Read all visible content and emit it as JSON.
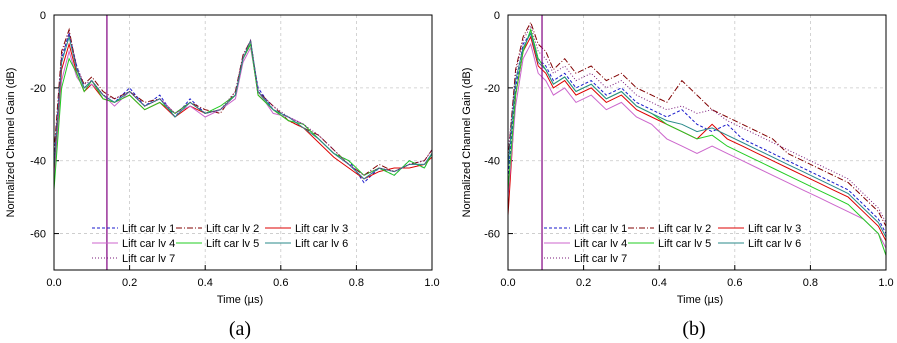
{
  "chart_data": [
    {
      "id": "a",
      "type": "line",
      "caption": "(a)",
      "xlabel": "Time (µs)",
      "ylabel": "Normalized Channel Gain (dB)",
      "xlim": [
        0.0,
        1.0
      ],
      "ylim": [
        -70,
        0
      ],
      "xticks": [
        "0.0",
        "0.2",
        "0.4",
        "0.6",
        "0.8",
        "1.0"
      ],
      "yticks": [
        "0",
        "-20",
        "-40",
        "-60"
      ],
      "grid": true,
      "legend_position": "bottom-left",
      "marker_line_x": 0.14,
      "marker_line_color": "#800080",
      "series": [
        {
          "name": "Lift car lv 1",
          "color": "#1a1acc",
          "dash": "3 2",
          "x": [
            0.0,
            0.02,
            0.04,
            0.06,
            0.08,
            0.1,
            0.13,
            0.16,
            0.2,
            0.24,
            0.28,
            0.32,
            0.36,
            0.4,
            0.44,
            0.48,
            0.5,
            0.52,
            0.54,
            0.58,
            0.62,
            0.66,
            0.7,
            0.74,
            0.78,
            0.82,
            0.86,
            0.9,
            0.94,
            0.98,
            1.0
          ],
          "y": [
            -40,
            -12,
            -5,
            -14,
            -20,
            -18,
            -22,
            -24,
            -20,
            -25,
            -22,
            -28,
            -23,
            -27,
            -26,
            -22,
            -12,
            -8,
            -20,
            -26,
            -28,
            -30,
            -34,
            -38,
            -40,
            -46,
            -42,
            -44,
            -40,
            -42,
            -38
          ]
        },
        {
          "name": "Lift car lv 2",
          "color": "#800000",
          "dash": "6 2 1 2",
          "x": [
            0.0,
            0.02,
            0.04,
            0.06,
            0.08,
            0.1,
            0.13,
            0.16,
            0.2,
            0.24,
            0.28,
            0.32,
            0.36,
            0.4,
            0.44,
            0.48,
            0.5,
            0.52,
            0.54,
            0.58,
            0.62,
            0.66,
            0.7,
            0.74,
            0.78,
            0.82,
            0.86,
            0.9,
            0.94,
            0.98,
            1.0
          ],
          "y": [
            -38,
            -10,
            -4,
            -15,
            -19,
            -17,
            -21,
            -23,
            -21,
            -24,
            -23,
            -27,
            -24,
            -26,
            -27,
            -21,
            -11,
            -7,
            -21,
            -25,
            -29,
            -31,
            -33,
            -37,
            -41,
            -44,
            -41,
            -43,
            -41,
            -40,
            -37
          ]
        },
        {
          "name": "Lift car lv 3",
          "color": "#dd0000",
          "dash": "",
          "x": [
            0.0,
            0.02,
            0.04,
            0.06,
            0.08,
            0.1,
            0.13,
            0.16,
            0.2,
            0.24,
            0.28,
            0.32,
            0.36,
            0.4,
            0.44,
            0.48,
            0.5,
            0.52,
            0.54,
            0.58,
            0.62,
            0.66,
            0.7,
            0.74,
            0.78,
            0.82,
            0.86,
            0.9,
            0.94,
            0.98,
            1.0
          ],
          "y": [
            -44,
            -15,
            -8,
            -16,
            -21,
            -19,
            -23,
            -24,
            -22,
            -26,
            -24,
            -28,
            -25,
            -27,
            -26,
            -22,
            -12,
            -8,
            -22,
            -26,
            -29,
            -31,
            -35,
            -39,
            -42,
            -45,
            -43,
            -42,
            -42,
            -41,
            -39
          ]
        },
        {
          "name": "Lift car lv 4",
          "color": "#cc66cc",
          "dash": "",
          "x": [
            0.0,
            0.02,
            0.04,
            0.06,
            0.08,
            0.1,
            0.13,
            0.16,
            0.2,
            0.24,
            0.28,
            0.32,
            0.36,
            0.4,
            0.44,
            0.48,
            0.5,
            0.52,
            0.54,
            0.58,
            0.62,
            0.66,
            0.7,
            0.74,
            0.78,
            0.82,
            0.86,
            0.9,
            0.94,
            0.98,
            1.0
          ],
          "y": [
            -46,
            -18,
            -10,
            -17,
            -20,
            -19,
            -22,
            -25,
            -21,
            -25,
            -23,
            -27,
            -25,
            -28,
            -26,
            -23,
            -13,
            -9,
            -21,
            -27,
            -28,
            -30,
            -34,
            -38,
            -41,
            -45,
            -42,
            -43,
            -41,
            -41,
            -38
          ]
        },
        {
          "name": "Lift car lv 5",
          "color": "#22cc22",
          "dash": "",
          "x": [
            0.0,
            0.02,
            0.04,
            0.06,
            0.08,
            0.1,
            0.13,
            0.16,
            0.2,
            0.24,
            0.28,
            0.32,
            0.36,
            0.4,
            0.44,
            0.48,
            0.5,
            0.52,
            0.54,
            0.58,
            0.62,
            0.66,
            0.7,
            0.74,
            0.78,
            0.82,
            0.86,
            0.9,
            0.94,
            0.98,
            1.0
          ],
          "y": [
            -48,
            -20,
            -12,
            -16,
            -21,
            -18,
            -23,
            -24,
            -22,
            -26,
            -24,
            -27,
            -24,
            -27,
            -25,
            -22,
            -12,
            -8,
            -22,
            -26,
            -29,
            -30,
            -34,
            -38,
            -40,
            -44,
            -42,
            -44,
            -40,
            -42,
            -38
          ]
        },
        {
          "name": "Lift car lv 6",
          "color": "#2a8a8a",
          "dash": "",
          "x": [
            0.0,
            0.02,
            0.04,
            0.06,
            0.08,
            0.1,
            0.13,
            0.16,
            0.2,
            0.24,
            0.28,
            0.32,
            0.36,
            0.4,
            0.44,
            0.48,
            0.5,
            0.52,
            0.54,
            0.58,
            0.62,
            0.66,
            0.7,
            0.74,
            0.78,
            0.82,
            0.86,
            0.9,
            0.94,
            0.98,
            1.0
          ],
          "y": [
            -42,
            -13,
            -6,
            -15,
            -20,
            -18,
            -22,
            -24,
            -21,
            -25,
            -23,
            -28,
            -24,
            -27,
            -26,
            -22,
            -12,
            -7,
            -21,
            -26,
            -28,
            -31,
            -34,
            -38,
            -41,
            -45,
            -42,
            -43,
            -41,
            -41,
            -38
          ]
        },
        {
          "name": "Lift car lv 7",
          "color": "#7a1a7a",
          "dash": "1 2",
          "x": [
            0.0,
            0.02,
            0.04,
            0.06,
            0.08,
            0.1,
            0.13,
            0.16,
            0.2,
            0.24,
            0.28,
            0.32,
            0.36,
            0.4,
            0.44,
            0.48,
            0.5,
            0.52,
            0.54,
            0.58,
            0.62,
            0.66,
            0.7,
            0.74,
            0.78,
            0.82,
            0.86,
            0.9,
            0.94,
            0.98,
            1.0
          ],
          "y": [
            -40,
            -11,
            -5,
            -14,
            -19,
            -18,
            -22,
            -23,
            -21,
            -25,
            -23,
            -27,
            -24,
            -27,
            -26,
            -21,
            -11,
            -7,
            -21,
            -25,
            -28,
            -30,
            -33,
            -37,
            -41,
            -44,
            -42,
            -43,
            -41,
            -40,
            -37
          ]
        }
      ]
    },
    {
      "id": "b",
      "type": "line",
      "caption": "(b)",
      "xlabel": "Time (µs)",
      "ylabel": "Normalized Channel Gain (dB)",
      "xlim": [
        0.0,
        1.0
      ],
      "ylim": [
        -70,
        0
      ],
      "xticks": [
        "0.0",
        "0.2",
        "0.4",
        "0.6",
        "0.8",
        "1.0"
      ],
      "yticks": [
        "0",
        "-20",
        "-40",
        "-60"
      ],
      "grid": true,
      "legend_position": "bottom-left",
      "marker_line_x": 0.09,
      "marker_line_color": "#800080",
      "series": [
        {
          "name": "Lift car lv 1",
          "color": "#1a1acc",
          "dash": "3 2",
          "x": [
            0.0,
            0.02,
            0.04,
            0.06,
            0.08,
            0.1,
            0.12,
            0.15,
            0.18,
            0.22,
            0.26,
            0.3,
            0.34,
            0.38,
            0.42,
            0.46,
            0.5,
            0.54,
            0.58,
            0.62,
            0.66,
            0.7,
            0.74,
            0.78,
            0.82,
            0.86,
            0.9,
            0.94,
            0.98,
            1.0
          ],
          "y": [
            -45,
            -20,
            -8,
            -5,
            -12,
            -14,
            -18,
            -16,
            -20,
            -18,
            -22,
            -20,
            -24,
            -26,
            -28,
            -26,
            -30,
            -32,
            -30,
            -34,
            -36,
            -38,
            -40,
            -42,
            -44,
            -46,
            -48,
            -52,
            -56,
            -60
          ]
        },
        {
          "name": "Lift car lv 2",
          "color": "#800000",
          "dash": "6 2 1 2",
          "x": [
            0.0,
            0.02,
            0.04,
            0.06,
            0.08,
            0.1,
            0.12,
            0.15,
            0.18,
            0.22,
            0.26,
            0.3,
            0.34,
            0.38,
            0.42,
            0.46,
            0.5,
            0.54,
            0.58,
            0.62,
            0.66,
            0.7,
            0.74,
            0.78,
            0.82,
            0.86,
            0.9,
            0.94,
            0.98,
            1.0
          ],
          "y": [
            -40,
            -15,
            -6,
            -2,
            -8,
            -10,
            -15,
            -12,
            -16,
            -14,
            -18,
            -16,
            -20,
            -22,
            -24,
            -18,
            -22,
            -26,
            -28,
            -30,
            -32,
            -34,
            -38,
            -40,
            -42,
            -44,
            -46,
            -50,
            -54,
            -58
          ]
        },
        {
          "name": "Lift car lv 3",
          "color": "#dd0000",
          "dash": "",
          "x": [
            0.0,
            0.02,
            0.04,
            0.06,
            0.08,
            0.1,
            0.12,
            0.15,
            0.18,
            0.22,
            0.26,
            0.3,
            0.34,
            0.38,
            0.42,
            0.46,
            0.5,
            0.54,
            0.58,
            0.62,
            0.66,
            0.7,
            0.74,
            0.78,
            0.82,
            0.86,
            0.9,
            0.94,
            0.98,
            1.0
          ],
          "y": [
            -55,
            -22,
            -10,
            -6,
            -14,
            -16,
            -20,
            -18,
            -22,
            -20,
            -24,
            -22,
            -26,
            -28,
            -30,
            -32,
            -34,
            -30,
            -34,
            -36,
            -38,
            -40,
            -42,
            -44,
            -46,
            -48,
            -50,
            -54,
            -58,
            -62
          ]
        },
        {
          "name": "Lift car lv 4",
          "color": "#cc66cc",
          "dash": "",
          "x": [
            0.0,
            0.02,
            0.04,
            0.06,
            0.08,
            0.1,
            0.12,
            0.15,
            0.18,
            0.22,
            0.26,
            0.3,
            0.34,
            0.38,
            0.42,
            0.46,
            0.5,
            0.54,
            0.58,
            0.62,
            0.66,
            0.7,
            0.74,
            0.78,
            0.82,
            0.86,
            0.9,
            0.94,
            0.98,
            1.0
          ],
          "y": [
            -50,
            -25,
            -12,
            -8,
            -16,
            -18,
            -22,
            -20,
            -24,
            -22,
            -26,
            -24,
            -28,
            -30,
            -34,
            -36,
            -38,
            -36,
            -38,
            -40,
            -42,
            -44,
            -46,
            -48,
            -50,
            -52,
            -54,
            -56,
            -60,
            -64
          ]
        },
        {
          "name": "Lift car lv 5",
          "color": "#22cc22",
          "dash": "",
          "x": [
            0.0,
            0.02,
            0.04,
            0.06,
            0.08,
            0.1,
            0.12,
            0.15,
            0.18,
            0.22,
            0.26,
            0.3,
            0.34,
            0.38,
            0.42,
            0.46,
            0.5,
            0.54,
            0.58,
            0.62,
            0.66,
            0.7,
            0.74,
            0.78,
            0.82,
            0.86,
            0.9,
            0.94,
            0.98,
            1.0
          ],
          "y": [
            -48,
            -22,
            -10,
            -4,
            -12,
            -15,
            -19,
            -17,
            -21,
            -19,
            -23,
            -21,
            -25,
            -27,
            -30,
            -32,
            -34,
            -33,
            -36,
            -38,
            -40,
            -42,
            -44,
            -46,
            -48,
            -50,
            -52,
            -56,
            -60,
            -66
          ]
        },
        {
          "name": "Lift car lv 6",
          "color": "#2a8a8a",
          "dash": "",
          "x": [
            0.0,
            0.02,
            0.04,
            0.06,
            0.08,
            0.1,
            0.12,
            0.15,
            0.18,
            0.22,
            0.26,
            0.3,
            0.34,
            0.38,
            0.42,
            0.46,
            0.5,
            0.54,
            0.58,
            0.62,
            0.66,
            0.7,
            0.74,
            0.78,
            0.82,
            0.86,
            0.9,
            0.94,
            0.98,
            1.0
          ],
          "y": [
            -42,
            -18,
            -9,
            -5,
            -13,
            -15,
            -19,
            -17,
            -21,
            -19,
            -23,
            -21,
            -25,
            -27,
            -29,
            -30,
            -32,
            -31,
            -33,
            -35,
            -37,
            -39,
            -41,
            -43,
            -45,
            -47,
            -49,
            -53,
            -57,
            -61
          ]
        },
        {
          "name": "Lift car lv 7",
          "color": "#7a1a7a",
          "dash": "1 2",
          "x": [
            0.0,
            0.02,
            0.04,
            0.06,
            0.08,
            0.1,
            0.12,
            0.15,
            0.18,
            0.22,
            0.26,
            0.3,
            0.34,
            0.38,
            0.42,
            0.46,
            0.5,
            0.54,
            0.58,
            0.62,
            0.66,
            0.7,
            0.74,
            0.78,
            0.82,
            0.86,
            0.9,
            0.94,
            0.98,
            1.0
          ],
          "y": [
            -38,
            -16,
            -7,
            -3,
            -10,
            -12,
            -16,
            -14,
            -18,
            -16,
            -20,
            -18,
            -22,
            -24,
            -26,
            -25,
            -27,
            -26,
            -29,
            -31,
            -33,
            -35,
            -37,
            -39,
            -41,
            -43,
            -45,
            -49,
            -53,
            -57
          ]
        }
      ]
    }
  ]
}
